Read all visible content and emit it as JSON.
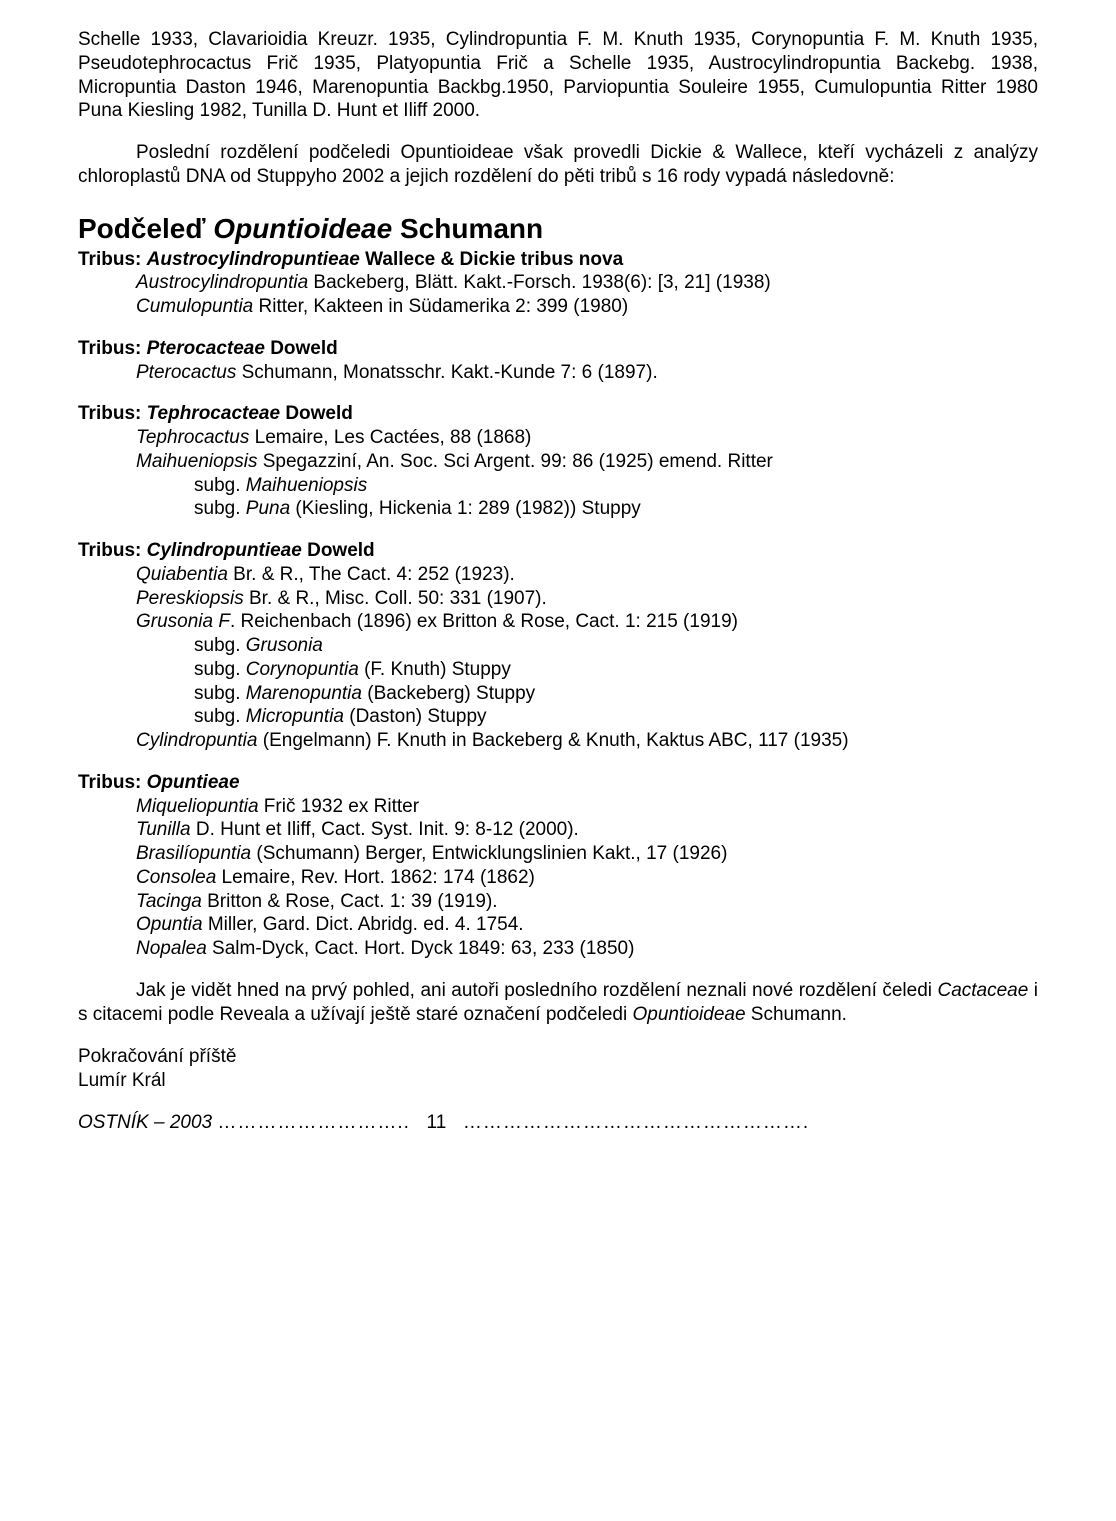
{
  "intro": {
    "p1": "Schelle 1933, Clavarioidia Kreuzr. 1935, Cylindropuntia F. M. Knuth 1935, Corynopuntia F. M. Knuth 1935, Pseudotephrocactus Frič 1935, Platyopuntia Frič a Schelle 1935, Austrocylindropuntia Backebg. 1938, Micropuntia Daston 1946, Marenopuntia Backbg.1950, Parviopuntia Souleire 1955, Cumulopuntia Ritter 1980 Puna Kiesling 1982, Tunilla D. Hunt et Iliff 2000.",
    "p2": "Poslední rozdělení podčeledi Opuntioideae však provedli Dickie & Wallece, kteří vycházeli z analýzy chloroplastů DNA od Stuppyho 2002 a jejich rozdělení do pěti tribů s 16 rody vypadá následovně:"
  },
  "heading": {
    "pre": "Podčeleď ",
    "ital": "Opuntioideae",
    "post": " Schumann"
  },
  "tribus1": {
    "head_pre": "Tribus: ",
    "head_ital": "Austrocylindropuntieae",
    "head_post": " Wallece & Dickie tribus nova",
    "e1_ital": "Austrocylindropuntia",
    "e1_post": " Backeberg, Blätt. Kakt.-Forsch. 1938(6): [3, 21] (1938)",
    "e2_ital": "Cumulopuntia",
    "e2_post": " Ritter, Kakteen in Südamerika 2: 399 (1980)"
  },
  "tribus2": {
    "head_pre": "Tribus: ",
    "head_ital": "Pterocacteae",
    "head_post": " Doweld",
    "e1_ital": "Pterocactus",
    "e1_post": " Schumann, Monatsschr. Kakt.-Kunde 7: 6 (1897)."
  },
  "tribus3": {
    "head_pre": "Tribus: ",
    "head_ital": "Tephrocacteae",
    "head_post": " Doweld",
    "e1_ital": "Tephrocactus",
    "e1_post": " Lemaire, Les Cactées, 88 (1868)",
    "e2_ital": "Maihueniopsis",
    "e2_post": " Spegazziní, An. Soc. Sci Argent. 99: 86 (1925) emend. Ritter",
    "e3_pre": "subg. ",
    "e3_ital": "Maihueniopsis",
    "e4_pre": "subg. ",
    "e4_ital": "Puna",
    "e4_post": " (Kiesling, Hickenia 1: 289 (1982)) Stuppy"
  },
  "tribus4": {
    "head_pre": "Tribus: ",
    "head_ital": "Cylindropuntieae",
    "head_post": " Doweld",
    "e1_ital": "Quiabentia",
    "e1_post": " Br. & R., The Cact. 4: 252 (1923).",
    "e2_ital": "Pereskiopsis",
    "e2_post": " Br. & R., Misc. Coll. 50: 331 (1907).",
    "e3_ital": "Grusonia F",
    "e3_post": ". Reichenbach (1896) ex Britton & Rose, Cact. 1: 215 (1919)",
    "e4_pre": "subg. ",
    "e4_ital": "Grusonia",
    "e5_pre": "subg. ",
    "e5_ital": "Corynopuntia",
    "e5_post": " (F. Knuth) Stuppy",
    "e6_pre": "subg. ",
    "e6_ital": "Marenopuntia",
    "e6_post": " (Backeberg) Stuppy",
    "e7_pre": "subg. ",
    "e7_ital": "Micropuntia",
    "e7_post": " (Daston) Stuppy",
    "e8_ital": "Cylindropuntia",
    "e8_post": " (Engelmann) F. Knuth in Backeberg & Knuth, Kaktus ABC, 117 (1935)"
  },
  "tribus5": {
    "head_pre": "Tribus: ",
    "head_ital": "Opuntieae",
    "e1_ital": "Miqueliopuntia",
    "e1_post": " Frič 1932 ex Ritter",
    "e2_ital": "Tunilla",
    "e2_post": " D. Hunt et Iliff, Cact. Syst. Init. 9: 8-12 (2000).",
    "e3_ital": "Brasilíopuntia",
    "e3_post": " (Schumann) Berger, Entwicklungslinien Kakt., 17 (1926)",
    "e4_ital": "Consolea",
    "e4_post": " Lemaire, Rev. Hort. 1862: 174 (1862)",
    "e5_ital": "Tacinga",
    "e5_post": " Britton & Rose, Cact. 1: 39 (1919).",
    "e6_ital": "Opuntia",
    "e6_post": " Miller, Gard. Dict. Abridg. ed. 4. 1754.",
    "e7_ital": "Nopalea",
    "e7_post": " Salm-Dyck, Cact. Hort. Dyck 1849: 63, 233 (1850)"
  },
  "closing": {
    "p_pre": "Jak je vidět hned na prvý pohled, ani autoři posledního rozdělení neznali nové rozdělení čeledi ",
    "p_ital1": "Cactaceae",
    "p_mid": " i s citacemi podle Reveala a užívají ještě staré označení podčeledi ",
    "p_ital2": "Opuntioideae",
    "p_post": " Schumann.",
    "cont": "Pokračování příště",
    "author": "Lumír Král"
  },
  "footer": {
    "title": "OSTNÍK – 2003",
    "dots1": "………………………..",
    "page": "11",
    "dots2": "……………………………………………."
  }
}
